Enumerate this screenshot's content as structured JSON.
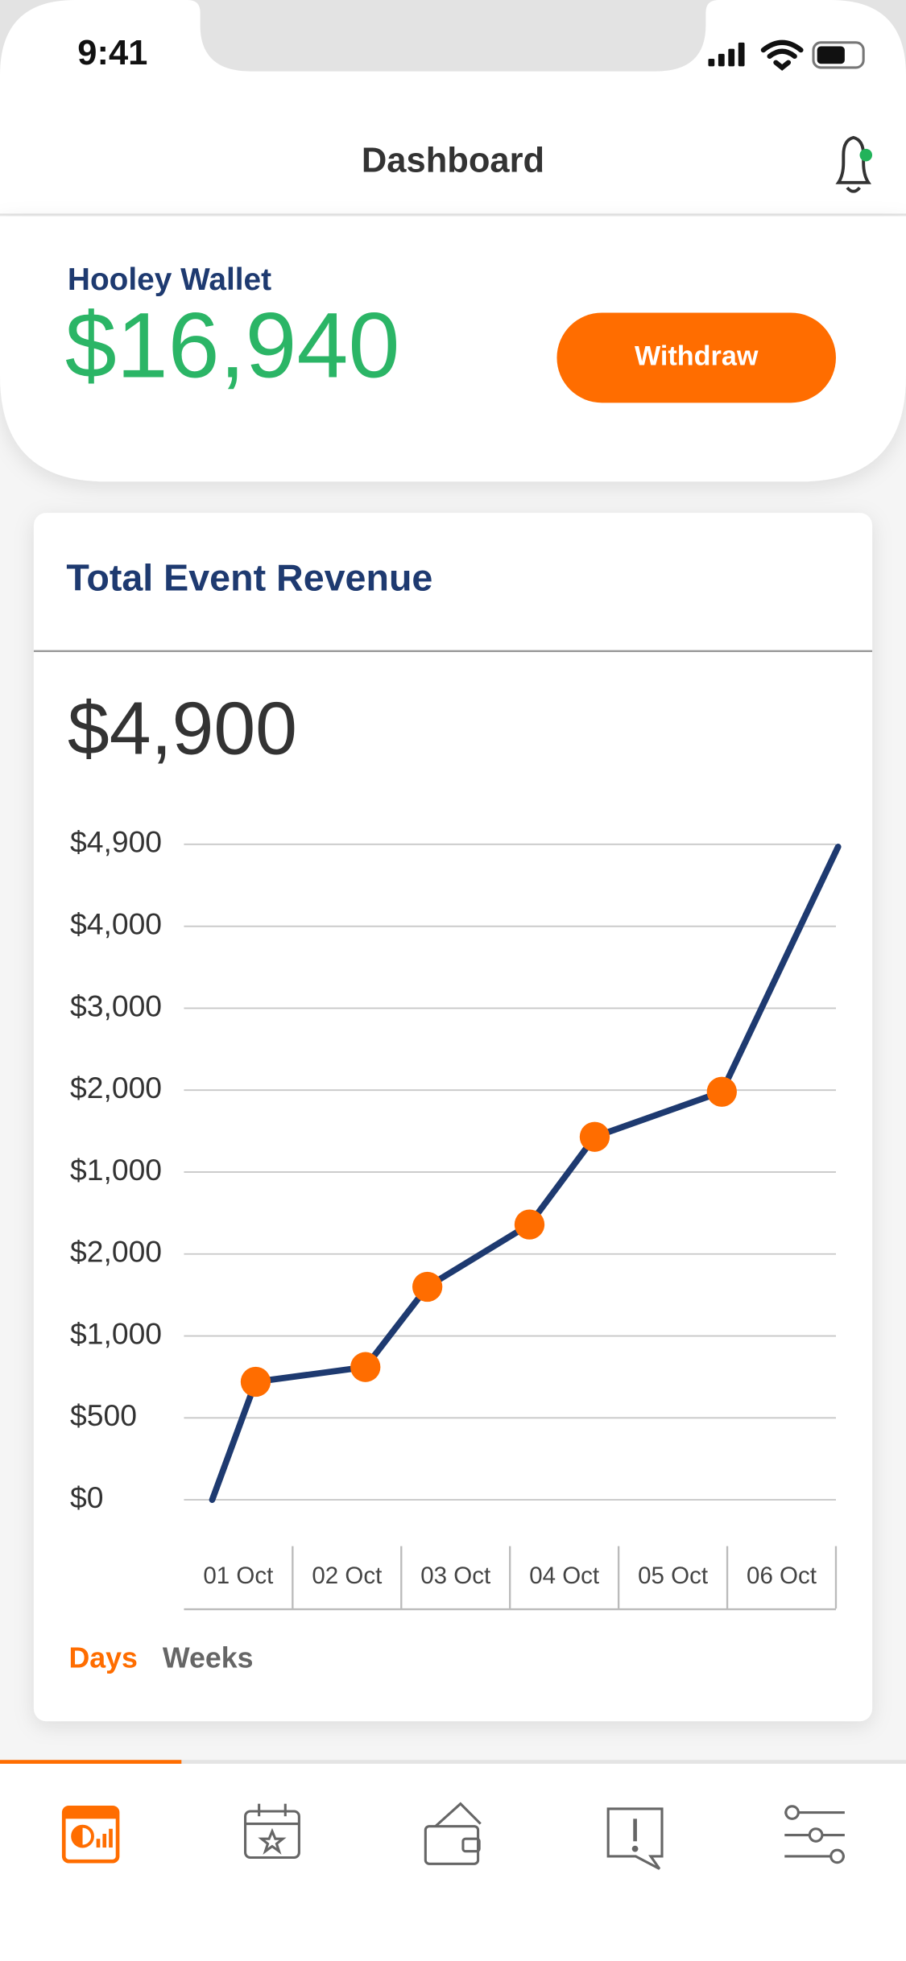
{
  "status_bar": {
    "time": "9:41"
  },
  "header": {
    "title": "Dashboard"
  },
  "wallet": {
    "label": "Hooley Wallet",
    "amount": "$16,940",
    "button": "Withdraw"
  },
  "revenue_card": {
    "title": "Total Event Revenue",
    "total": "$4,900",
    "tabs": [
      "Days",
      "Weeks"
    ],
    "active_tab": 0
  },
  "chart_data": {
    "type": "line",
    "xticks": [
      {
        "value": 0,
        "label": "01 Oct"
      },
      {
        "value": 1,
        "label": "02 Oct"
      },
      {
        "value": 2,
        "label": "03 Oct"
      },
      {
        "value": 3,
        "label": "04 Oct"
      },
      {
        "value": 4,
        "label": "05 Oct"
      },
      {
        "value": 5,
        "label": "06 Oct"
      }
    ],
    "xlim": [
      -0.5,
      5.5
    ],
    "ylim": [
      0,
      8
    ],
    "yticks": [
      {
        "value": 0,
        "label": "$0"
      },
      {
        "value": 1,
        "label": "$500"
      },
      {
        "value": 2,
        "label": "$1,000"
      },
      {
        "value": 3,
        "label": "$2,000"
      },
      {
        "value": 4,
        "label": "$1,000"
      },
      {
        "value": 5,
        "label": "$2,000"
      },
      {
        "value": 6,
        "label": "$3,000"
      },
      {
        "value": 7,
        "label": "$4,000"
      },
      {
        "value": 8,
        "label": "$4,900"
      }
    ],
    "grid": true,
    "series": [
      {
        "color": "#1e3a70",
        "marker_color": "#ff6d00",
        "x": [
          -0.24,
          0.16,
          1.17,
          1.74,
          2.68,
          3.28,
          4.45,
          5.52
        ],
        "values": [
          0,
          1.44,
          1.62,
          2.6,
          3.36,
          4.43,
          4.98,
          7.97
        ],
        "markers": [
          false,
          true,
          true,
          true,
          true,
          true,
          true,
          false
        ]
      }
    ]
  }
}
